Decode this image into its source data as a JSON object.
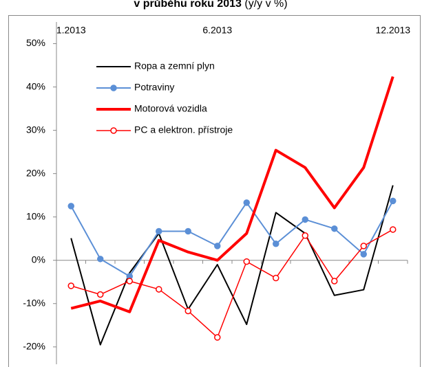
{
  "chart_data": {
    "type": "line",
    "title": "v průběhu roku 2013",
    "title_note": "(y/y v %)",
    "categories": [
      "1.2013",
      null,
      null,
      null,
      null,
      "6.2013",
      null,
      null,
      null,
      null,
      null,
      "12.2013"
    ],
    "series": [
      {
        "name": "Ropa a zemní plyn",
        "color": "#000000",
        "width": 2,
        "marker": null,
        "values": [
          5.1,
          -19.5,
          -2.9,
          6.2,
          -11.3,
          -1,
          -14.8,
          11,
          6.2,
          -8.1,
          -6.8,
          17.3
        ]
      },
      {
        "name": "Potraviny",
        "color": "#5b8fd6",
        "width": 2,
        "marker": "filled",
        "values": [
          12.5,
          0.3,
          -3.7,
          6.7,
          6.7,
          3.3,
          13.3,
          3.8,
          9.4,
          7.3,
          1.4,
          13.7
        ]
      },
      {
        "name": "Motorová vozidla",
        "color": "#ff0000",
        "width": 4,
        "marker": null,
        "values": [
          -11.1,
          -9.4,
          -11.9,
          4.6,
          1.9,
          0,
          6.2,
          25.4,
          21.4,
          12.1,
          21.4,
          42.4
        ]
      },
      {
        "name": "PC a elektron. přístroje",
        "color": "#ff0000",
        "width": 1.5,
        "marker": "open",
        "values": [
          -5.9,
          -7.9,
          -4.8,
          -6.7,
          -11.7,
          -17.8,
          -0.3,
          -4.1,
          5.7,
          -4.8,
          3.3,
          7.1
        ]
      }
    ],
    "ylim": [
      -24,
      55
    ],
    "yticks": [
      {
        "value": -20,
        "label": "-20%"
      },
      {
        "value": -10,
        "label": "-10%"
      },
      {
        "value": 0,
        "label": "0%"
      },
      {
        "value": 10,
        "label": "10%"
      },
      {
        "value": 20,
        "label": "20%"
      },
      {
        "value": 30,
        "label": "30%"
      },
      {
        "value": 40,
        "label": "40%"
      },
      {
        "value": 50,
        "label": "50%"
      }
    ],
    "legend": "upper-left"
  }
}
